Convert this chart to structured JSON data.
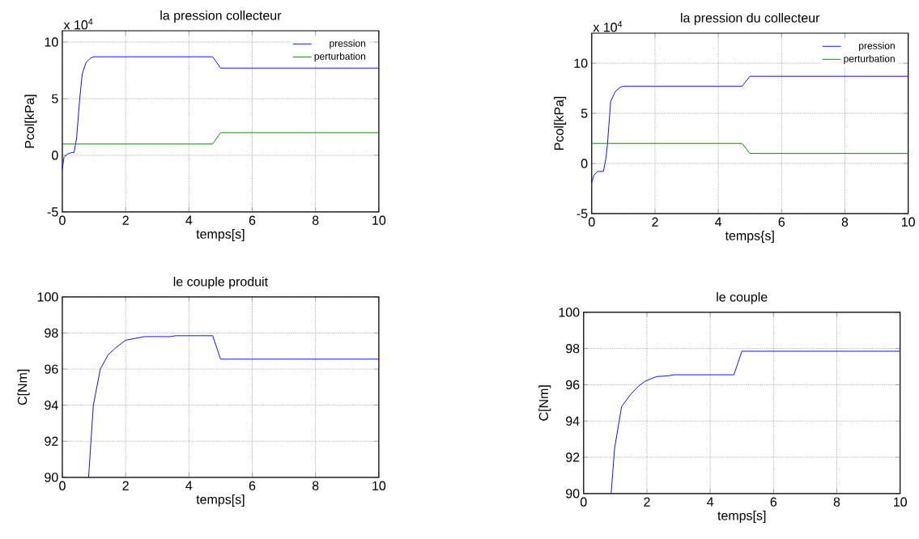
{
  "chart_data": [
    {
      "type": "line",
      "title": "la pression collecteur",
      "xlabel": "temps[s]",
      "ylabel": "Pcol[kPa]",
      "annotations": [
        "x 10$^{4}$"
      ],
      "xlim": [
        0,
        10
      ],
      "ylim": [
        -5,
        11
      ],
      "xticks": [
        0,
        2,
        4,
        6,
        8,
        10
      ],
      "yticks": [
        -5,
        0,
        5,
        10
      ],
      "grid": true,
      "legend": "top right",
      "marker": "none",
      "line_style": "solid",
      "series": [
        {
          "name": "pression",
          "color": "#0000ff",
          "x": [
            0,
            0.05,
            0.15,
            0.3,
            0.37,
            0.45,
            0.55,
            0.63,
            0.75,
            0.9,
            1,
            4.75,
            5,
            10
          ],
          "values": [
            -1.2,
            -0.2,
            0.1,
            0.25,
            0.25,
            1.5,
            5,
            7.2,
            8.2,
            8.6,
            8.7,
            8.7,
            7.7,
            7.7
          ]
        },
        {
          "name": "perturbation",
          "color": "#008000",
          "x": [
            0,
            4.75,
            5,
            10
          ],
          "values": [
            1,
            1,
            2,
            2
          ]
        }
      ]
    },
    {
      "type": "line",
      "title": "la pression du collecteur",
      "xlabel": "temps{s]",
      "ylabel": "Pcol[kPa]",
      "annotations": [
        "x 10$^{4}$"
      ],
      "xlim": [
        0,
        10
      ],
      "ylim": [
        -5,
        13
      ],
      "xticks": [
        0,
        2,
        4,
        6,
        8,
        10
      ],
      "yticks": [
        -5,
        0,
        5,
        10
      ],
      "grid": true,
      "legend": "top right",
      "marker": "none",
      "line_style": "solid",
      "series": [
        {
          "name": "pression",
          "color": "#0000ff",
          "x": [
            0,
            0.07,
            0.15,
            0.2,
            0.37,
            0.45,
            0.5,
            0.6,
            0.75,
            0.9,
            1,
            4.75,
            5,
            10
          ],
          "values": [
            -1.9,
            -1.2,
            -0.9,
            -0.8,
            -0.8,
            0.5,
            2,
            6.2,
            7.2,
            7.6,
            7.7,
            7.7,
            8.7,
            8.7
          ]
        },
        {
          "name": "perturbation",
          "color": "#008000",
          "x": [
            0,
            4.75,
            5,
            10
          ],
          "values": [
            2,
            2,
            1,
            1
          ]
        }
      ]
    },
    {
      "type": "line",
      "title": "le couple produit",
      "xlabel": "temps[s]",
      "ylabel": "C[Nm]",
      "xlim": [
        0,
        10
      ],
      "ylim": [
        90,
        100
      ],
      "xticks": [
        0,
        2,
        4,
        6,
        8,
        10
      ],
      "yticks": [
        90,
        92,
        94,
        96,
        98,
        100
      ],
      "grid": true,
      "marker": "none",
      "line_style": "solid",
      "series": [
        {
          "color": "#0000ff",
          "x": [
            0.83,
            0.98,
            1.2,
            1.45,
            1.7,
            2,
            2.6,
            3.4,
            3.6,
            4.75,
            5,
            10
          ],
          "values": [
            90,
            94,
            96,
            96.8,
            97.2,
            97.6,
            97.8,
            97.8,
            97.85,
            97.85,
            96.55,
            96.55
          ]
        }
      ]
    },
    {
      "type": "line",
      "title": "le couple",
      "xlabel": "temps[s]",
      "ylabel": "C[Nm]",
      "xlim": [
        0,
        10
      ],
      "ylim": [
        90,
        100
      ],
      "xticks": [
        0,
        2,
        4,
        6,
        8,
        10
      ],
      "yticks": [
        90,
        92,
        94,
        96,
        98,
        100
      ],
      "grid": true,
      "marker": "none",
      "line_style": "solid",
      "series": [
        {
          "color": "#0000ff",
          "x": [
            0.87,
            0.98,
            1.2,
            1.5,
            1.75,
            1.95,
            2.3,
            2.7,
            2.85,
            4.75,
            5,
            10
          ],
          "values": [
            90,
            92.5,
            94.8,
            95.5,
            95.95,
            96.2,
            96.45,
            96.5,
            96.55,
            96.55,
            97.85,
            97.85
          ]
        }
      ]
    }
  ]
}
